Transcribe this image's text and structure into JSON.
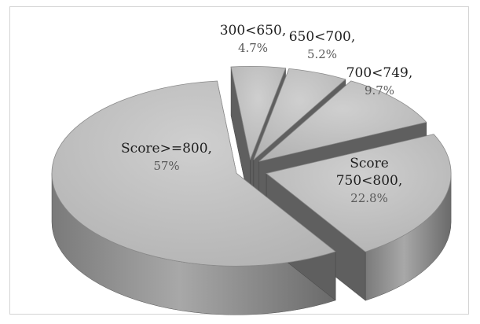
{
  "chart_data": {
    "type": "pie",
    "style": "3d-exploded",
    "slices": [
      {
        "label": "300<650,",
        "value": 4.7,
        "value_label": "4.7%"
      },
      {
        "label": "650<700,",
        "value": 5.2,
        "value_label": "5.2%"
      },
      {
        "label": "700<749,",
        "value": 9.7,
        "value_label": "9.7%"
      },
      {
        "label": "Score 750<800,",
        "label_lines": [
          "Score",
          "750<800,"
        ],
        "value": 22.8,
        "value_label": "22.8%"
      },
      {
        "label": "Score>=800,",
        "value": 57,
        "value_label": "57%"
      }
    ],
    "colors": {
      "top": "#bdbdbd",
      "side_light": "#9a9a9a",
      "side_dark": "#6e6e6e",
      "text": "#1e1e1e",
      "pct_text": "#5a5a5a"
    }
  }
}
